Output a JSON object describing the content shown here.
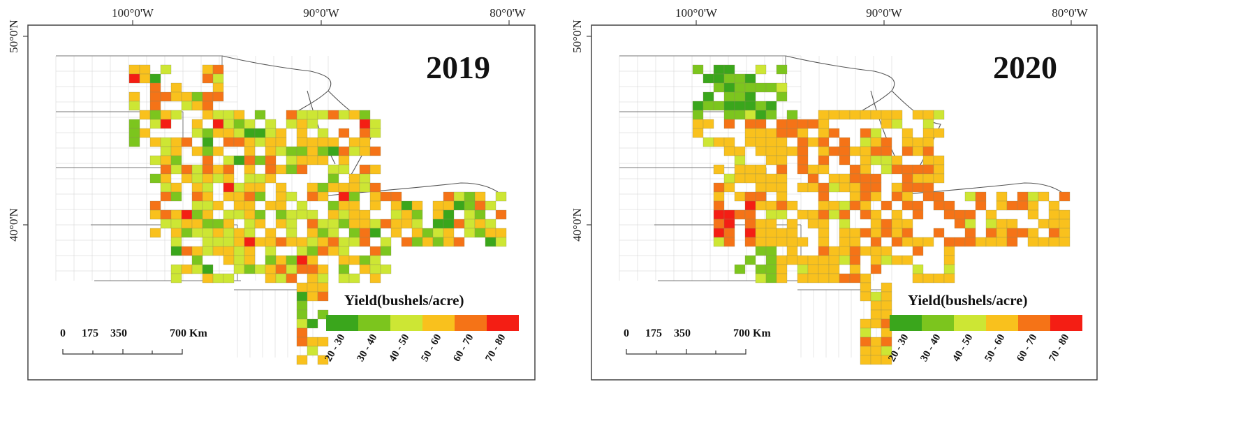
{
  "maps": [
    {
      "id": "map-2019",
      "year_label": "2019",
      "lon_labels": [
        "100°0'W",
        "90°0'W",
        "80°0'W"
      ],
      "lat_labels": [
        "50°0'N",
        "40°0'N"
      ],
      "legend": {
        "title": "Yield(bushels/acre)",
        "classes": [
          "20 - 30",
          "30 - 40",
          "40 - 50",
          "50 - 60",
          "60 - 70",
          "70 - 80"
        ]
      },
      "scale": {
        "ticks": [
          "0",
          "175",
          "350",
          "700 Km"
        ]
      },
      "seed": 19
    },
    {
      "id": "map-2020",
      "year_label": "2020",
      "lon_labels": [
        "100°0'W",
        "90°0'W",
        "80°0'W"
      ],
      "lat_labels": [
        "50°0'N",
        "40°0'N"
      ],
      "legend": {
        "title": "Yield(bushels/acre)",
        "classes": [
          "20 - 30",
          "30 - 40",
          "40 - 50",
          "50 - 60",
          "60 - 70",
          "70 - 80"
        ]
      },
      "scale": {
        "ticks": [
          "0",
          "175",
          "350",
          "700 Km"
        ]
      },
      "seed": 20
    }
  ],
  "class_colors": [
    "#3aa61c",
    "#7cc51e",
    "#cde634",
    "#f9c11d",
    "#f57317",
    "#f41e14"
  ]
}
